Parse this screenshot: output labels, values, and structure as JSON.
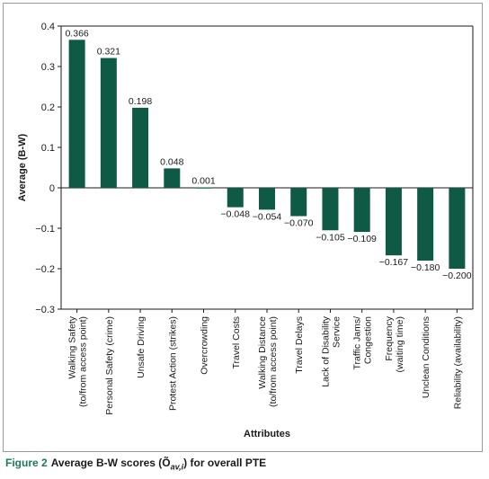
{
  "chart_data": {
    "type": "bar",
    "xlabel": "Attributes",
    "ylabel": "Average (B-W)",
    "ylim": [
      -0.3,
      0.4
    ],
    "yticks": [
      "0.4",
      "0.3",
      "0.2",
      "0.1",
      "0",
      "−0.1",
      "−0.2",
      "−0.3"
    ],
    "grid": false,
    "bar_color": "#0f5a45",
    "categories": [
      [
        "Walking Safety",
        "(to/from access point)"
      ],
      [
        "Personal Safety (crime)"
      ],
      [
        "Unsafe Driving"
      ],
      [
        "Protest Action (strikes)"
      ],
      [
        "Overcrowding"
      ],
      [
        "Travel Costs"
      ],
      [
        "Walking Distance",
        "(to/from access point)"
      ],
      [
        "Travel Delays"
      ],
      [
        "Lack of Disability",
        "Service"
      ],
      [
        "Traffic Jams/",
        "Congestion"
      ],
      [
        "Frequency",
        "(waiting time)"
      ],
      [
        "Unclean Conditions"
      ],
      [
        "Reliability (availability)"
      ]
    ],
    "values": [
      0.366,
      0.321,
      0.198,
      0.048,
      0.001,
      -0.048,
      -0.054,
      -0.07,
      -0.105,
      -0.109,
      -0.167,
      -0.18,
      -0.2
    ],
    "value_labels": [
      "0.366",
      "0.321",
      "0.198",
      "0.048",
      "0.001",
      "−0.048",
      "−0.054",
      "−0.070",
      "−0.105",
      "−0.109",
      "−0.167",
      "−0.180",
      "−0.200"
    ]
  },
  "caption": {
    "figure_label": "Figure 2",
    "text": "Average B-W scores (Õav,i) for overall PTE",
    "prefix": "Average B-W scores (",
    "symbol": "Õ",
    "subscript": "av,i",
    "suffix": ") for overall PTE"
  },
  "colors": {
    "bar": "#0f5a45",
    "caption_label": "#1c7a5a"
  }
}
